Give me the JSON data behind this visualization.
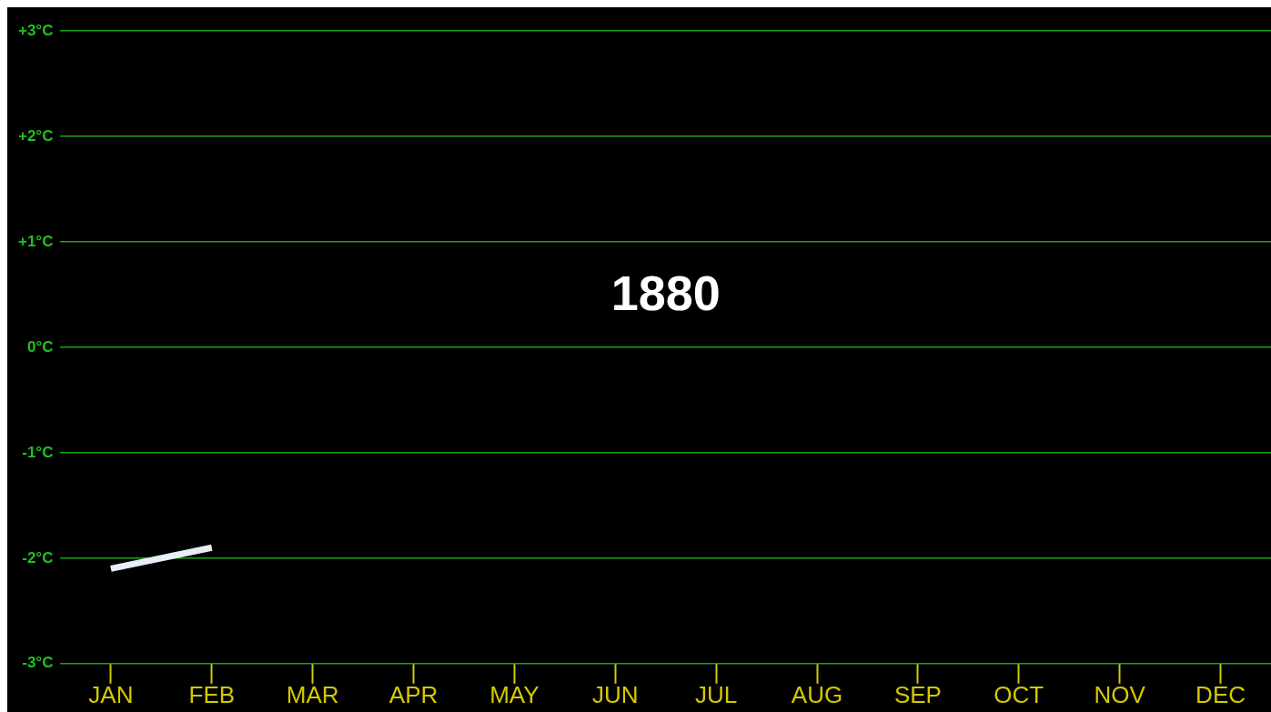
{
  "chart_data": {
    "type": "line",
    "title": "1880",
    "categories": [
      "JAN",
      "FEB",
      "MAR",
      "APR",
      "MAY",
      "JUN",
      "JUL",
      "AUG",
      "SEP",
      "OCT",
      "NOV",
      "DEC"
    ],
    "series": [
      {
        "color": "#e8eef5",
        "values": [
          -2.1,
          -1.9,
          null,
          null,
          null,
          null,
          null,
          null,
          null,
          null,
          null,
          null
        ]
      }
    ],
    "ylim": [
      -3,
      3
    ],
    "yticks": [
      {
        "value": -3,
        "label": "-3°C"
      },
      {
        "value": -2,
        "label": "-2°C"
      },
      {
        "value": -1,
        "label": "-1°C"
      },
      {
        "value": 0,
        "label": "0°C"
      },
      {
        "value": 1,
        "label": "+1°C"
      },
      {
        "value": 2,
        "label": "+2°C"
      },
      {
        "value": 3,
        "label": "+3°C"
      }
    ],
    "grid": "y",
    "legend": false,
    "marker": "none",
    "line_style": "solid"
  }
}
